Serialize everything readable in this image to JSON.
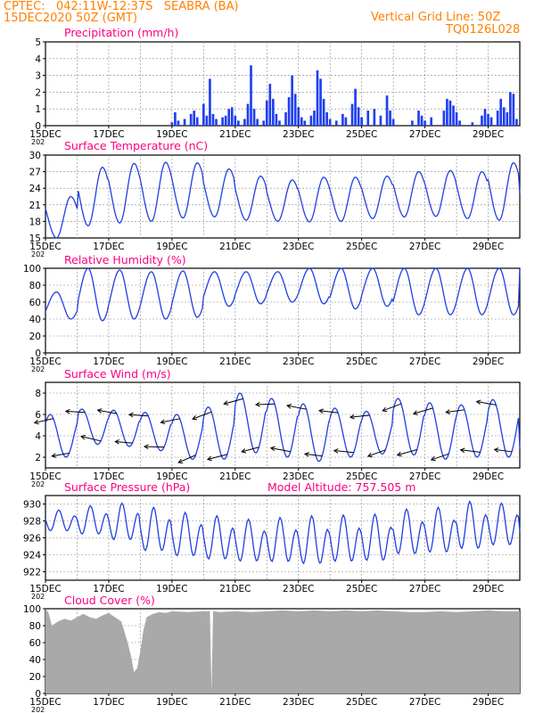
{
  "header": {
    "line1_left": "CPTEC:   042:11W-12:37S   SEABRA (BA)",
    "line2_left": "15DEC2020 50Z (GMT)",
    "line1_right": "Vertical Grid Line: 50Z",
    "line2_right": "TQ0126L028"
  },
  "colors": {
    "header": "#ff8000",
    "title": "#ff0080",
    "line": "#2040e0",
    "bar": "#1f3ff0",
    "cloud": "#a9a9a9",
    "grid": "#888888"
  },
  "x_axis": {
    "tick_labels": [
      "15DEC",
      "17DEC",
      "19DEC",
      "21DEC",
      "23DEC",
      "25DEC",
      "27DEC",
      "29DEC"
    ],
    "year_fragment": "202",
    "start_day": 15,
    "end_day": 30,
    "step_days": 2
  },
  "chart_data": [
    {
      "id": "precipitation",
      "type": "bar",
      "title": "Precipitation (mm/h)",
      "ylim": [
        0,
        5
      ],
      "yticks": [
        0,
        1,
        2,
        3,
        4,
        5
      ],
      "grid": true,
      "x_unit": "day of December 2020 (model hourly steps)",
      "series": [
        {
          "values": [
            [
              19.0,
              0.2
            ],
            [
              19.1,
              0.8
            ],
            [
              19.2,
              0.3
            ],
            [
              19.4,
              0.4
            ],
            [
              19.6,
              0.7
            ],
            [
              19.7,
              0.9
            ],
            [
              19.8,
              0.5
            ],
            [
              20.0,
              1.3
            ],
            [
              20.1,
              0.6
            ],
            [
              20.2,
              2.8
            ],
            [
              20.3,
              0.7
            ],
            [
              20.4,
              0.4
            ],
            [
              20.6,
              0.5
            ],
            [
              20.7,
              0.6
            ],
            [
              20.8,
              1.0
            ],
            [
              20.9,
              1.1
            ],
            [
              21.0,
              0.6
            ],
            [
              21.1,
              0.3
            ],
            [
              21.3,
              0.4
            ],
            [
              21.4,
              1.3
            ],
            [
              21.5,
              3.6
            ],
            [
              21.6,
              1.0
            ],
            [
              21.7,
              0.4
            ],
            [
              21.9,
              0.3
            ],
            [
              22.0,
              1.5
            ],
            [
              22.1,
              2.5
            ],
            [
              22.2,
              1.6
            ],
            [
              22.3,
              0.7
            ],
            [
              22.4,
              0.3
            ],
            [
              22.6,
              0.8
            ],
            [
              22.7,
              1.7
            ],
            [
              22.8,
              3.0
            ],
            [
              22.9,
              1.9
            ],
            [
              23.0,
              1.1
            ],
            [
              23.1,
              0.5
            ],
            [
              23.2,
              0.3
            ],
            [
              23.4,
              0.6
            ],
            [
              23.5,
              0.9
            ],
            [
              23.6,
              3.3
            ],
            [
              23.7,
              2.8
            ],
            [
              23.8,
              1.6
            ],
            [
              23.9,
              0.8
            ],
            [
              24.0,
              0.4
            ],
            [
              24.2,
              0.3
            ],
            [
              24.4,
              0.7
            ],
            [
              24.5,
              0.5
            ],
            [
              24.7,
              1.3
            ],
            [
              24.8,
              2.2
            ],
            [
              24.9,
              1.1
            ],
            [
              25.0,
              0.5
            ],
            [
              25.2,
              0.9
            ],
            [
              25.4,
              1.0
            ],
            [
              25.6,
              0.6
            ],
            [
              25.8,
              1.8
            ],
            [
              25.9,
              0.9
            ],
            [
              26.0,
              0.4
            ],
            [
              26.6,
              0.3
            ],
            [
              26.8,
              0.9
            ],
            [
              26.9,
              0.6
            ],
            [
              27.0,
              0.3
            ],
            [
              27.2,
              0.5
            ],
            [
              27.6,
              0.9
            ],
            [
              27.7,
              1.6
            ],
            [
              27.8,
              1.5
            ],
            [
              27.9,
              1.2
            ],
            [
              28.0,
              0.8
            ],
            [
              28.1,
              0.3
            ],
            [
              28.5,
              0.2
            ],
            [
              28.8,
              0.6
            ],
            [
              28.9,
              1.0
            ],
            [
              29.0,
              0.7
            ],
            [
              29.1,
              0.5
            ],
            [
              29.3,
              0.9
            ],
            [
              29.4,
              1.6
            ],
            [
              29.5,
              1.1
            ],
            [
              29.6,
              0.8
            ],
            [
              29.7,
              2.0
            ],
            [
              29.8,
              1.9
            ],
            [
              29.9,
              0.4
            ]
          ]
        }
      ]
    },
    {
      "id": "temperature",
      "type": "line",
      "title": "Surface Temperature (nC)",
      "ylim": [
        15,
        30
      ],
      "yticks": [
        15,
        18,
        21,
        24,
        27,
        30
      ],
      "grid": true,
      "diurnal": {
        "min_at": 0.35,
        "max_at": 0.8
      },
      "series": [
        {
          "daily": [
            [
              15,
              22.5,
              15.0
            ],
            [
              16,
              27.8,
              17.2
            ],
            [
              17,
              28.5,
              17.7
            ],
            [
              18,
              28.7,
              18.0
            ],
            [
              19,
              28.6,
              18.6
            ],
            [
              20,
              27.5,
              18.8
            ],
            [
              21,
              26.2,
              18.2
            ],
            [
              22,
              25.5,
              18.0
            ],
            [
              23,
              26.0,
              17.9
            ],
            [
              24,
              26.0,
              18.0
            ],
            [
              25,
              26.2,
              18.5
            ],
            [
              26,
              27.0,
              18.8
            ],
            [
              27,
              27.2,
              18.9
            ],
            [
              28,
              27.0,
              18.5
            ],
            [
              29,
              28.6,
              18.2
            ],
            [
              30,
              23.0,
              23.0
            ]
          ]
        }
      ]
    },
    {
      "id": "humidity",
      "type": "line",
      "title": "Relative Humidity (%)",
      "ylim": [
        0,
        100
      ],
      "yticks": [
        0,
        20,
        40,
        60,
        80,
        100
      ],
      "grid": true,
      "diurnal": {
        "min_at": 0.8,
        "max_at": 0.35
      },
      "series": [
        {
          "daily": [
            [
              15,
              72,
              40
            ],
            [
              16,
              100,
              38
            ],
            [
              17,
              98,
              40
            ],
            [
              18,
              96,
              40
            ],
            [
              19,
              97,
              42
            ],
            [
              20,
              96,
              55
            ],
            [
              21,
              96,
              58
            ],
            [
              22,
              96,
              60
            ],
            [
              23,
              100,
              58
            ],
            [
              24,
              100,
              52
            ],
            [
              25,
              100,
              55
            ],
            [
              26,
              100,
              45
            ],
            [
              27,
              100,
              45
            ],
            [
              28,
              100,
              45
            ],
            [
              29,
              100,
              45
            ],
            [
              30,
              100,
              100
            ]
          ]
        }
      ]
    },
    {
      "id": "wind",
      "type": "line",
      "title": "Surface Wind (m/s)",
      "ylim": [
        1,
        9
      ],
      "yticks": [
        2,
        4,
        6,
        8
      ],
      "grid": true,
      "diurnal": {
        "min_at": 0.65,
        "max_at": 0.15
      },
      "series": [
        {
          "daily": [
            [
              15,
              6.0,
              2.0
            ],
            [
              16,
              6.5,
              3.2
            ],
            [
              17,
              6.4,
              3.0
            ],
            [
              18,
              6.2,
              2.6
            ],
            [
              19,
              6.0,
              1.8
            ],
            [
              20,
              6.7,
              1.8
            ],
            [
              21,
              8.0,
              2.4
            ],
            [
              22,
              7.5,
              2.0
            ],
            [
              23,
              7.0,
              1.6
            ],
            [
              24,
              6.6,
              2.0
            ],
            [
              25,
              6.3,
              2.3
            ],
            [
              26,
              7.5,
              2.2
            ],
            [
              27,
              7.1,
              1.8
            ],
            [
              28,
              6.9,
              2.0
            ],
            [
              29,
              7.4,
              2.0
            ],
            [
              30,
              3.0,
              2.0
            ]
          ]
        }
      ],
      "arrows": {
        "every_days": 0.5,
        "length_ms": 3.4,
        "direction": "from east-northeast"
      }
    },
    {
      "id": "pressure",
      "type": "line",
      "title": "Surface Pressure (hPa)",
      "annotation": "Model Altitude: 757.505 m",
      "ylim": [
        921,
        931
      ],
      "yticks": [
        922,
        924,
        926,
        928,
        930
      ],
      "grid": true,
      "semidiurnal": true,
      "series": [
        {
          "daily": [
            [
              15,
              929.3,
              926.5
            ],
            [
              16,
              929.8,
              926.0
            ],
            [
              17,
              930.1,
              925.2
            ],
            [
              18,
              929.6,
              923.8
            ],
            [
              19,
              929.0,
              923.2
            ],
            [
              20,
              928.6,
              922.8
            ],
            [
              21,
              928.2,
              922.6
            ],
            [
              22,
              928.4,
              922.5
            ],
            [
              23,
              928.6,
              922.2
            ],
            [
              24,
              928.7,
              922.5
            ],
            [
              25,
              928.8,
              922.6
            ],
            [
              26,
              929.4,
              923.4
            ],
            [
              27,
              929.6,
              923.6
            ],
            [
              28,
              930.3,
              924.0
            ],
            [
              29,
              930.1,
              924.5
            ],
            [
              30,
              928.0,
              925.0
            ]
          ]
        }
      ]
    },
    {
      "id": "cloud",
      "type": "area",
      "title": "Cloud Cover (%)",
      "ylim": [
        0,
        100
      ],
      "yticks": [
        0,
        20,
        40,
        60,
        80,
        100
      ],
      "grid": true,
      "series": [
        {
          "values": [
            [
              15.0,
              100
            ],
            [
              15.1,
              95
            ],
            [
              15.2,
              80
            ],
            [
              15.4,
              85
            ],
            [
              15.6,
              88
            ],
            [
              15.8,
              86
            ],
            [
              16.0,
              90
            ],
            [
              16.2,
              94
            ],
            [
              16.4,
              90
            ],
            [
              16.6,
              88
            ],
            [
              16.8,
              92
            ],
            [
              17.0,
              95
            ],
            [
              17.2,
              90
            ],
            [
              17.4,
              85
            ],
            [
              17.6,
              60
            ],
            [
              17.7,
              45
            ],
            [
              17.8,
              25
            ],
            [
              17.9,
              30
            ],
            [
              18.0,
              50
            ],
            [
              18.1,
              75
            ],
            [
              18.2,
              90
            ],
            [
              18.4,
              94
            ],
            [
              18.6,
              96
            ],
            [
              18.8,
              95
            ],
            [
              19.0,
              97
            ],
            [
              19.5,
              96
            ],
            [
              20.0,
              97
            ],
            [
              20.2,
              97
            ],
            [
              20.25,
              2
            ],
            [
              20.3,
              97
            ],
            [
              20.5,
              96
            ],
            [
              21.0,
              97
            ],
            [
              21.5,
              96
            ],
            [
              22.0,
              97
            ],
            [
              22.5,
              98
            ],
            [
              23.0,
              97
            ],
            [
              23.5,
              98
            ],
            [
              24.0,
              97
            ],
            [
              24.5,
              98
            ],
            [
              25.0,
              97
            ],
            [
              25.5,
              98
            ],
            [
              26.0,
              97
            ],
            [
              26.5,
              96
            ],
            [
              27.0,
              96
            ],
            [
              27.5,
              97
            ],
            [
              28.0,
              96
            ],
            [
              28.5,
              97
            ],
            [
              29.0,
              98
            ],
            [
              29.5,
              97
            ],
            [
              30.0,
              97
            ]
          ]
        }
      ]
    }
  ]
}
